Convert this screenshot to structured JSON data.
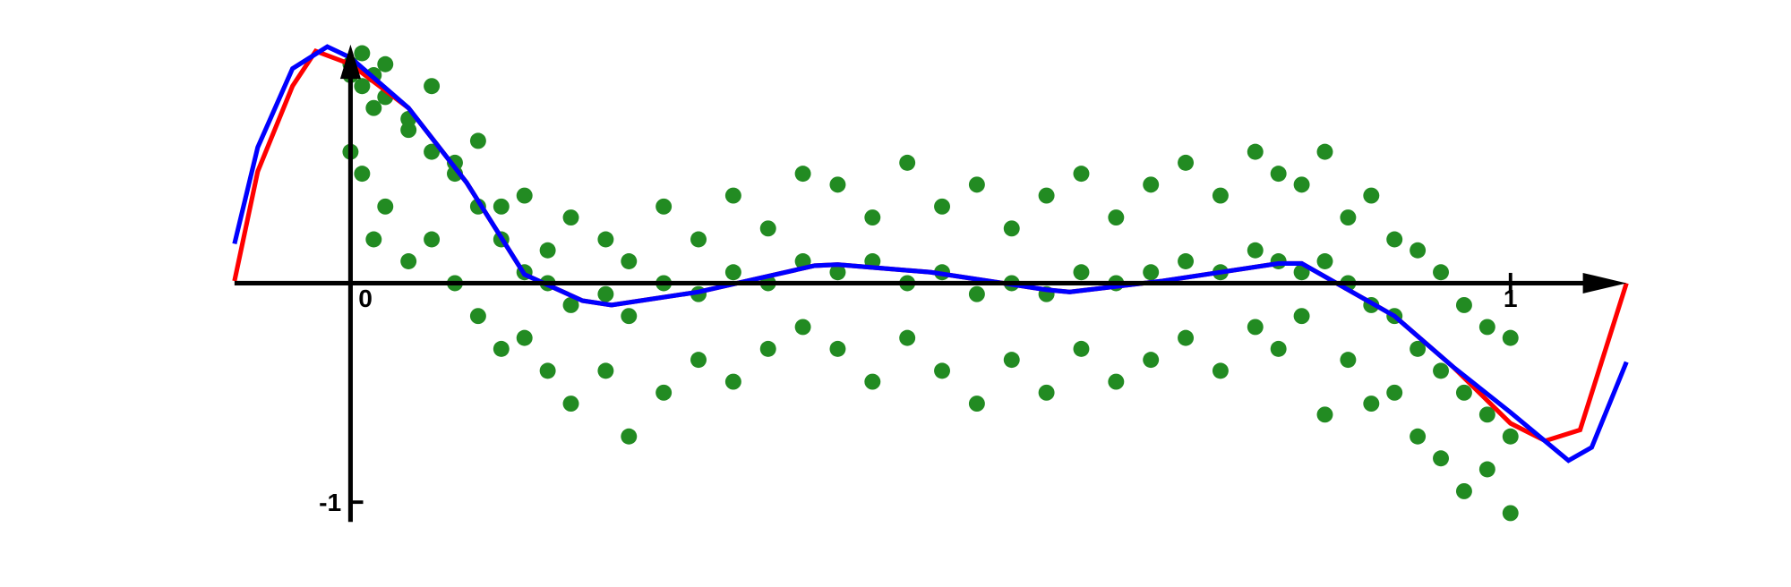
{
  "chart_data": {
    "type": "scatter",
    "xlim": [
      -0.1,
      1.1
    ],
    "ylim": [
      -1.09,
      1.09
    ],
    "xticks": [
      0,
      1
    ],
    "yticks": [
      -1
    ],
    "scatter": {
      "color": "#228b22",
      "x": [
        0.0,
        0.0,
        0.0,
        0.01,
        0.01,
        0.01,
        0.02,
        0.02,
        0.02,
        0.03,
        0.03,
        0.03,
        0.05,
        0.05,
        0.05,
        0.07,
        0.07,
        0.07,
        0.09,
        0.09,
        0.09,
        0.11,
        0.11,
        0.11,
        0.13,
        0.13,
        0.13,
        0.15,
        0.15,
        0.15,
        0.17,
        0.17,
        0.17,
        0.19,
        0.19,
        0.19,
        0.22,
        0.22,
        0.22,
        0.24,
        0.24,
        0.24,
        0.27,
        0.27,
        0.27,
        0.3,
        0.3,
        0.3,
        0.33,
        0.33,
        0.33,
        0.36,
        0.36,
        0.36,
        0.39,
        0.39,
        0.39,
        0.42,
        0.42,
        0.42,
        0.45,
        0.45,
        0.45,
        0.48,
        0.48,
        0.48,
        0.51,
        0.51,
        0.51,
        0.54,
        0.54,
        0.54,
        0.57,
        0.57,
        0.57,
        0.6,
        0.6,
        0.6,
        0.63,
        0.63,
        0.63,
        0.66,
        0.66,
        0.66,
        0.69,
        0.69,
        0.69,
        0.72,
        0.72,
        0.72,
        0.75,
        0.75,
        0.75,
        0.78,
        0.78,
        0.78,
        0.8,
        0.8,
        0.8,
        0.82,
        0.82,
        0.82,
        0.84,
        0.84,
        0.84,
        0.86,
        0.86,
        0.86,
        0.88,
        0.88,
        0.88,
        0.9,
        0.9,
        0.9,
        0.92,
        0.92,
        0.92,
        0.94,
        0.94,
        0.94,
        0.96,
        0.96,
        0.96,
        0.98,
        0.98,
        0.98,
        1.0,
        1.0,
        1.0
      ],
      "y": [
        0.95,
        0.6,
        1.0,
        1.05,
        0.5,
        0.9,
        0.8,
        0.2,
        0.95,
        1.0,
        0.35,
        0.85,
        0.7,
        0.1,
        0.75,
        0.9,
        0.2,
        0.6,
        0.55,
        0.0,
        0.5,
        0.65,
        -0.15,
        0.35,
        0.35,
        -0.3,
        0.2,
        0.4,
        -0.25,
        0.05,
        0.15,
        -0.4,
        0.0,
        0.3,
        -0.55,
        -0.1,
        0.2,
        -0.4,
        -0.05,
        0.1,
        -0.7,
        -0.15,
        0.35,
        -0.5,
        0.0,
        0.2,
        -0.35,
        -0.05,
        0.4,
        -0.45,
        0.05,
        0.25,
        -0.3,
        0.0,
        0.5,
        -0.2,
        0.1,
        0.45,
        -0.3,
        0.05,
        0.3,
        -0.45,
        0.1,
        0.55,
        -0.25,
        0.0,
        0.35,
        -0.4,
        0.05,
        0.45,
        -0.55,
        -0.05,
        0.25,
        -0.35,
        0.0,
        0.4,
        -0.5,
        -0.05,
        0.5,
        -0.3,
        0.05,
        0.3,
        -0.45,
        0.0,
        0.45,
        -0.35,
        0.05,
        0.55,
        -0.25,
        0.1,
        0.4,
        -0.4,
        0.05,
        0.6,
        -0.2,
        0.15,
        0.5,
        -0.3,
        0.1,
        0.45,
        -0.15,
        0.05,
        0.6,
        -0.6,
        0.1,
        0.3,
        -0.35,
        0.0,
        0.4,
        -0.55,
        -0.1,
        0.2,
        -0.5,
        -0.15,
        0.15,
        -0.7,
        -0.3,
        0.05,
        -0.8,
        -0.4,
        -0.1,
        -0.95,
        -0.5,
        -0.2,
        -0.85,
        -0.6,
        -0.25,
        -1.05,
        -0.7
      ]
    },
    "series": [
      {
        "color": "#ff0000",
        "x": [
          -0.1,
          -0.08,
          -0.05,
          -0.03,
          0.0,
          0.05,
          0.1,
          0.15,
          0.2,
          0.225,
          0.3,
          0.4,
          0.42,
          0.5,
          0.6,
          0.62,
          0.7,
          0.8,
          0.82,
          0.9,
          0.95,
          1.0,
          1.03,
          1.06,
          1.1
        ],
        "y": [
          0.01,
          0.51,
          0.9,
          1.06,
          1.0,
          0.8,
          0.46,
          0.04,
          -0.08,
          -0.1,
          -0.04,
          0.08,
          0.085,
          0.05,
          -0.03,
          -0.04,
          0.01,
          0.09,
          0.09,
          -0.15,
          -0.38,
          -0.64,
          -0.72,
          -0.67,
          0.0
        ]
      },
      {
        "color": "#0000ff",
        "x": [
          -0.1,
          -0.08,
          -0.05,
          -0.02,
          0.0,
          0.05,
          0.1,
          0.15,
          0.2,
          0.225,
          0.3,
          0.4,
          0.42,
          0.5,
          0.6,
          0.62,
          0.7,
          0.8,
          0.82,
          0.9,
          0.95,
          1.0,
          1.05,
          1.07,
          1.1
        ],
        "y": [
          0.18,
          0.62,
          0.98,
          1.08,
          1.03,
          0.8,
          0.46,
          0.04,
          -0.08,
          -0.1,
          -0.04,
          0.08,
          0.085,
          0.05,
          -0.03,
          -0.04,
          0.01,
          0.09,
          0.09,
          -0.15,
          -0.38,
          -0.59,
          -0.81,
          -0.75,
          -0.36
        ]
      }
    ]
  }
}
